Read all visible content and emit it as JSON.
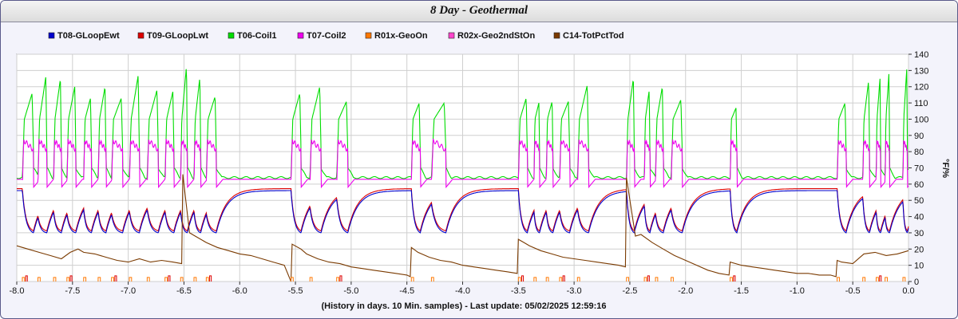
{
  "title": "8 Day - Geothermal",
  "chart_data": {
    "type": "line",
    "title": "8 Day - Geothermal",
    "xlabel": "(History in days. 10 Min. samples) - Last update: 05/02/2025 12:59:16",
    "ylabel": "°F/%",
    "xlim": [
      -8.0,
      0.0
    ],
    "ylim": [
      0,
      140
    ],
    "x_ticks": [
      "-8.0",
      "-7.5",
      "-7.0",
      "-6.5",
      "-6.0",
      "-5.5",
      "-5.0",
      "-4.5",
      "-4.0",
      "-3.5",
      "-3.0",
      "-2.5",
      "-2.0",
      "-1.5",
      "-1.0",
      "-0.5",
      "0.0"
    ],
    "y_ticks": [
      "0",
      "10",
      "20",
      "30",
      "40",
      "50",
      "60",
      "70",
      "80",
      "90",
      "100",
      "110",
      "120",
      "130",
      "140"
    ],
    "grid": true,
    "legend_position": "top",
    "series": [
      {
        "name": "T08-GLoopEwt",
        "color": "#0000cc"
      },
      {
        "name": "T09-GLoopLwt",
        "color": "#dd0000"
      },
      {
        "name": "T06-Coil1",
        "color": "#00dd00"
      },
      {
        "name": "T07-Coil2",
        "color": "#ee00ee"
      },
      {
        "name": "R01x-GeoOn",
        "color": "#ff7700"
      },
      {
        "name": "R02x-Geo2ndStOn",
        "color": "#ff44cc"
      },
      {
        "name": "C14-TotPctTod",
        "color": "#7a3a00"
      }
    ],
    "cycle_starts": [
      -7.95,
      -7.81,
      -7.67,
      -7.55,
      -7.4,
      -7.27,
      -7.15,
      -6.99,
      -6.83,
      -6.67,
      -6.53,
      -6.41,
      -6.3,
      -5.54,
      -5.37,
      -5.13,
      -4.46,
      -4.28,
      -3.5,
      -3.36,
      -3.25,
      -3.13,
      -2.97,
      -2.53,
      -2.37,
      -2.27,
      -2.13,
      -1.6,
      -0.64,
      -0.41,
      -0.29,
      -0.21,
      -0.05
    ],
    "cycle_ends": [
      -7.85,
      -7.73,
      -7.6,
      -7.47,
      -7.33,
      -7.2,
      -7.05,
      -6.9,
      -6.73,
      -6.59,
      -6.47,
      -6.35,
      -6.21,
      -5.45,
      -5.27,
      -5.03,
      -4.38,
      -4.15,
      -3.42,
      -3.31,
      -3.19,
      -3.04,
      -2.87,
      -2.46,
      -2.32,
      -2.2,
      -2.03,
      -1.54,
      -0.56,
      -0.35,
      -0.25,
      -0.17,
      -0.01
    ],
    "coil1_peaks": [
      116,
      126,
      125,
      120,
      113,
      120,
      113,
      127,
      118,
      117,
      133,
      126,
      114,
      116,
      120,
      111,
      110,
      110,
      113,
      110,
      111,
      111,
      121,
      125,
      118,
      120,
      112,
      107,
      110,
      124,
      126,
      129,
      132
    ],
    "ewt_baseline": 56,
    "ewt_min": 30,
    "lwt_offset": 1.2,
    "coil_idle": 64,
    "coil2_plateau": 87,
    "coil2_idle_dip": 58,
    "pct_series": {
      "x": [
        -8.0,
        -7.9,
        -7.8,
        -7.7,
        -7.6,
        -7.52,
        -7.45,
        -7.4,
        -7.3,
        -7.2,
        -7.1,
        -7.0,
        -6.9,
        -6.8,
        -6.7,
        -6.6,
        -6.52,
        -6.51,
        -6.45,
        -6.4,
        -6.3,
        -6.2,
        -6.1,
        -6.0,
        -5.9,
        -5.8,
        -5.7,
        -5.6,
        -5.54,
        -5.53,
        -5.45,
        -5.4,
        -5.3,
        -5.2,
        -5.1,
        -5.0,
        -4.9,
        -4.8,
        -4.7,
        -4.6,
        -4.5,
        -4.47,
        -4.46,
        -4.4,
        -4.3,
        -4.2,
        -4.1,
        -4.0,
        -3.9,
        -3.8,
        -3.7,
        -3.6,
        -3.51,
        -3.5,
        -3.45,
        -3.4,
        -3.3,
        -3.2,
        -3.1,
        -3.0,
        -2.9,
        -2.8,
        -2.7,
        -2.6,
        -2.54,
        -2.53,
        -2.45,
        -2.4,
        -2.3,
        -2.2,
        -2.1,
        -2.0,
        -1.9,
        -1.8,
        -1.7,
        -1.61,
        -1.6,
        -1.5,
        -1.4,
        -1.3,
        -1.2,
        -1.1,
        -1.0,
        -0.9,
        -0.8,
        -0.7,
        -0.65,
        -0.64,
        -0.6,
        -0.5,
        -0.4,
        -0.3,
        -0.2,
        -0.1,
        0.0
      ],
      "y": [
        22,
        20,
        18,
        16,
        14,
        18,
        20,
        18,
        17,
        15,
        13,
        12,
        14,
        12,
        13,
        12,
        11,
        66,
        30,
        28,
        24,
        21,
        19,
        17,
        16,
        14,
        12,
        10,
        0,
        23,
        20,
        17,
        14,
        12,
        11,
        9,
        8,
        7,
        6,
        5,
        4,
        3,
        21,
        18,
        15,
        13,
        12,
        10,
        9,
        8,
        7,
        6,
        5,
        26,
        24,
        22,
        19,
        17,
        15,
        14,
        13,
        12,
        11,
        10,
        9,
        64,
        28,
        29,
        24,
        20,
        16,
        13,
        10,
        7,
        5,
        4,
        12,
        10,
        9,
        8,
        7,
        6,
        5,
        5,
        4,
        4,
        3,
        13,
        12,
        11,
        17,
        18,
        16,
        17,
        19
      ]
    }
  }
}
